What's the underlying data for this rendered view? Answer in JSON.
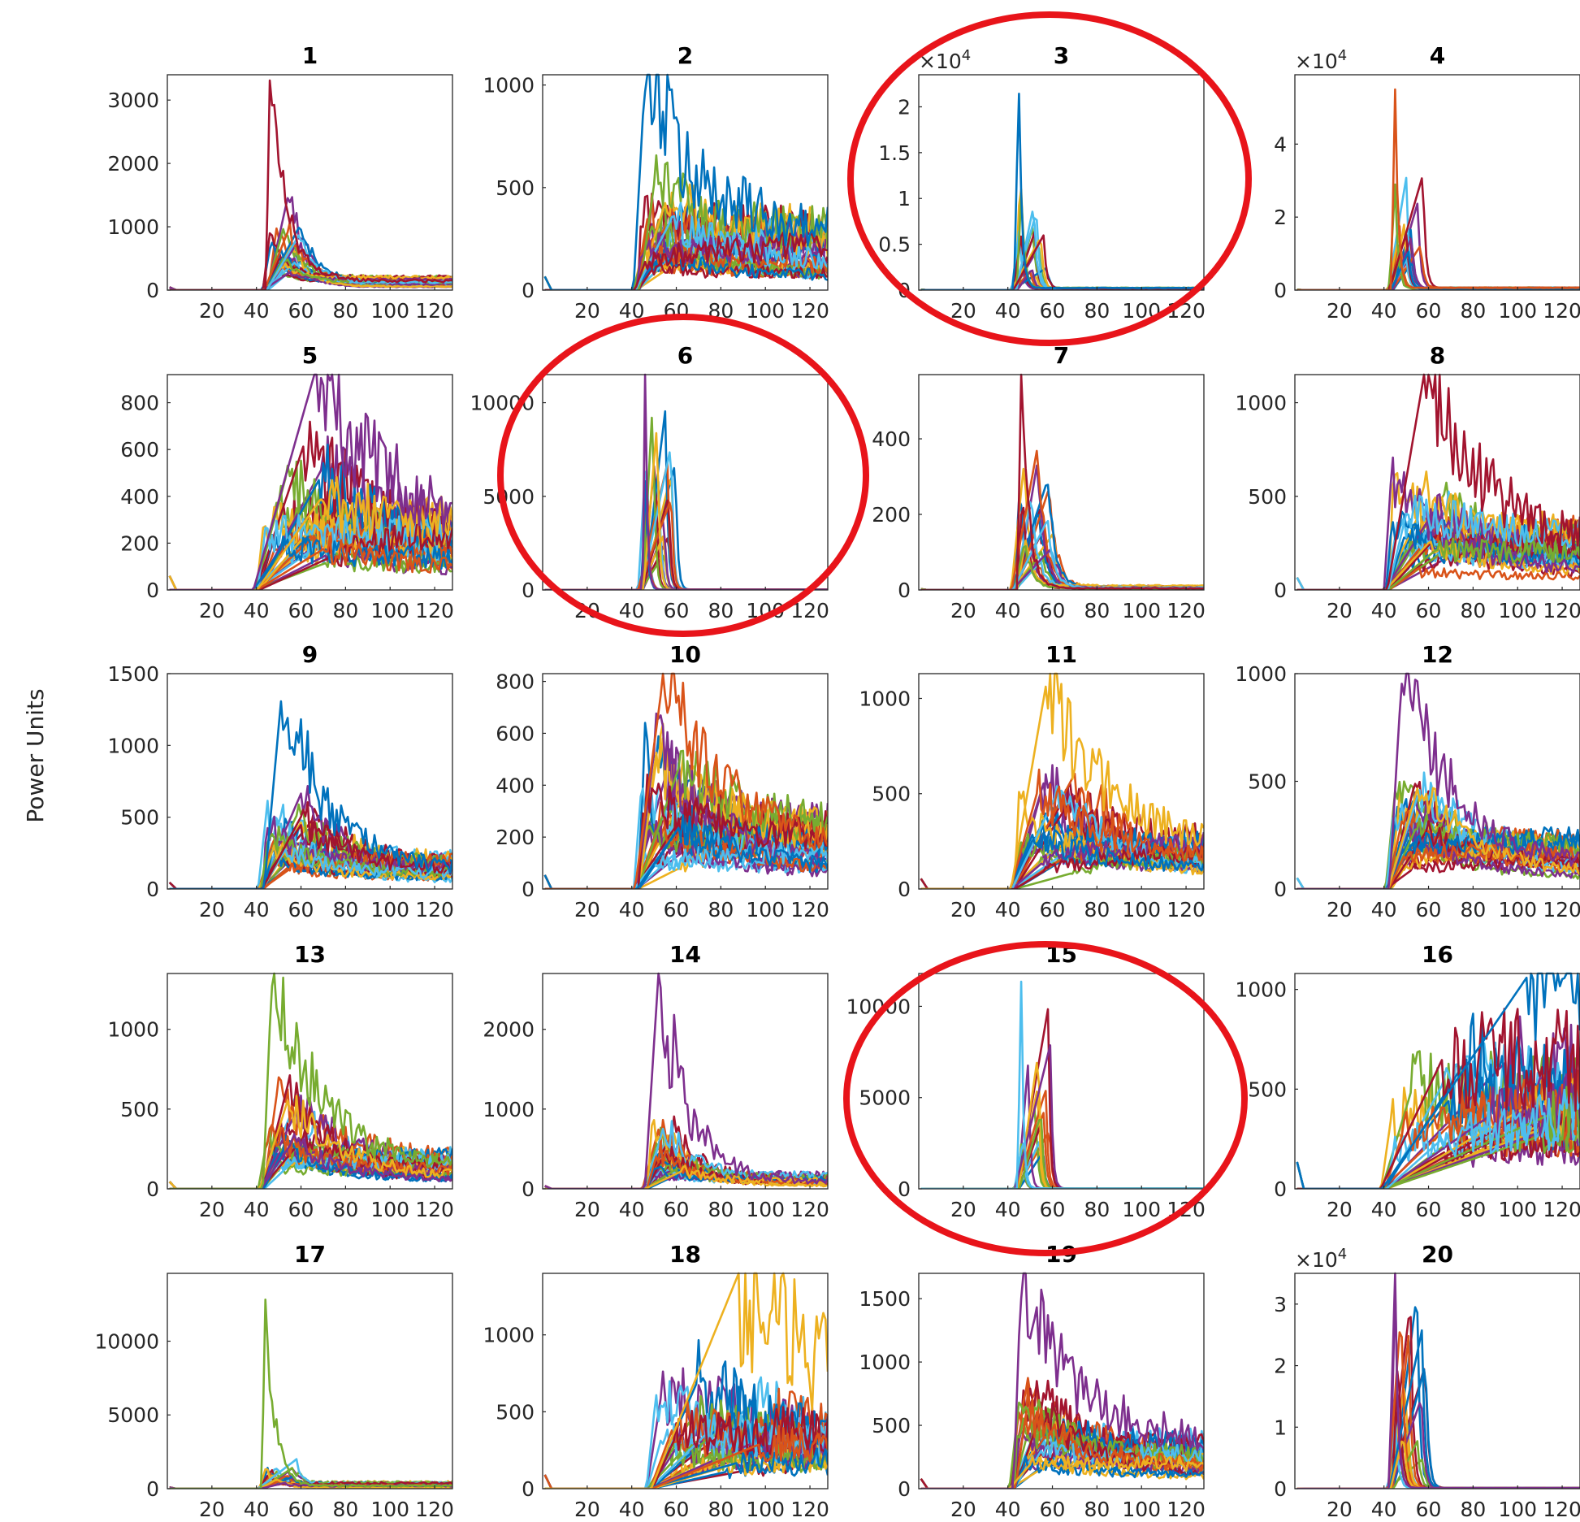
{
  "figure": {
    "ylabel": "Power Units",
    "series_colors": [
      "#0072BD",
      "#D95319",
      "#EDB120",
      "#7E2F8E",
      "#77AC30",
      "#4DBEEE",
      "#A2142F"
    ],
    "annotation_color": "#E8141A",
    "annotation_shape": "ellipse",
    "circled_panels": [
      "3",
      "6",
      "15"
    ]
  },
  "chart_data": [
    {
      "title": "1",
      "type": "line",
      "xlim": [
        0,
        128
      ],
      "ylim": [
        0,
        3400
      ],
      "xticks": [
        "20",
        "40",
        "60",
        "80",
        "100",
        "120"
      ],
      "yticks": [
        {
          "v": 0,
          "label": "0"
        },
        {
          "v": 1000,
          "label": "1000"
        },
        {
          "v": 2000,
          "label": "2000"
        },
        {
          "v": 3000,
          "label": "3000"
        }
      ],
      "exponent": "",
      "onset": 44,
      "peak_x": 46,
      "peak_y": 3400,
      "plateau": 1200,
      "tail": 150,
      "decay": 12,
      "noise": 0.15,
      "n_series": 28
    },
    {
      "title": "2",
      "type": "line",
      "xlim": [
        0,
        128
      ],
      "ylim": [
        0,
        1050
      ],
      "xticks": [
        "20",
        "40",
        "60",
        "80",
        "100",
        "120"
      ],
      "yticks": [
        {
          "v": 0,
          "label": "0"
        },
        {
          "v": 500,
          "label": "500"
        },
        {
          "v": 1000,
          "label": "1000"
        }
      ],
      "exponent": "",
      "onset": 42,
      "peak_x": 46,
      "peak_y": 1050,
      "plateau": 450,
      "tail": 220,
      "decay": 40,
      "noise": 0.35,
      "n_series": 28
    },
    {
      "title": "3",
      "type": "line",
      "xlim": [
        0,
        128
      ],
      "ylim": [
        0,
        2.35
      ],
      "xticks": [
        "20",
        "40",
        "60",
        "80",
        "100",
        "120"
      ],
      "yticks": [
        {
          "v": 0,
          "label": "0"
        },
        {
          "v": 0.5,
          "label": "0.5"
        },
        {
          "v": 1,
          "label": "1"
        },
        {
          "v": 1.5,
          "label": "1.5"
        },
        {
          "v": 2,
          "label": "2"
        }
      ],
      "exponent": "4",
      "onset": 43,
      "peak_x": 45,
      "peak_y": 2.35,
      "plateau": 0.9,
      "tail": 0.02,
      "decay": 2,
      "noise": 0.1,
      "n_series": 20
    },
    {
      "title": "4",
      "type": "line",
      "xlim": [
        0,
        128
      ],
      "ylim": [
        0,
        5.9
      ],
      "xticks": [
        "20",
        "40",
        "60",
        "80",
        "100",
        "120"
      ],
      "yticks": [
        {
          "v": 0,
          "label": "0"
        },
        {
          "v": 2,
          "label": "2"
        },
        {
          "v": 4,
          "label": "4"
        }
      ],
      "exponent": "4",
      "onset": 43,
      "peak_x": 45,
      "peak_y": 5.9,
      "plateau": 2.4,
      "tail": 0.05,
      "decay": 2,
      "noise": 0.1,
      "n_series": 20
    },
    {
      "title": "5",
      "type": "line",
      "xlim": [
        0,
        128
      ],
      "ylim": [
        0,
        920
      ],
      "xticks": [
        "20",
        "40",
        "60",
        "80",
        "100",
        "120"
      ],
      "yticks": [
        {
          "v": 0,
          "label": "0"
        },
        {
          "v": 200,
          "label": "200"
        },
        {
          "v": 400,
          "label": "400"
        },
        {
          "v": 600,
          "label": "600"
        },
        {
          "v": 800,
          "label": "800"
        }
      ],
      "exponent": "",
      "onset": 40,
      "peak_x": 66,
      "peak_y": 920,
      "plateau": 450,
      "tail": 200,
      "decay": 60,
      "noise": 0.35,
      "n_series": 28
    },
    {
      "title": "6",
      "type": "line",
      "xlim": [
        0,
        128
      ],
      "ylim": [
        0,
        11500
      ],
      "xticks": [
        "20",
        "40",
        "60",
        "80",
        "100",
        "120"
      ],
      "yticks": [
        {
          "v": 0,
          "label": "0"
        },
        {
          "v": 5000,
          "label": "5000"
        },
        {
          "v": 10000,
          "label": "10000"
        }
      ],
      "exponent": "",
      "onset": 44,
      "peak_x": 46,
      "peak_y": 11500,
      "plateau": 9000,
      "tail": 20,
      "decay": 1.5,
      "noise": 0.05,
      "n_series": 20
    },
    {
      "title": "7",
      "type": "line",
      "xlim": [
        0,
        128
      ],
      "ylim": [
        0,
        570
      ],
      "xticks": [
        "20",
        "40",
        "60",
        "80",
        "100",
        "120"
      ],
      "yticks": [
        {
          "v": 0,
          "label": "0"
        },
        {
          "v": 200,
          "label": "200"
        },
        {
          "v": 400,
          "label": "400"
        }
      ],
      "exponent": "",
      "onset": 43,
      "peak_x": 46,
      "peak_y": 570,
      "plateau": 300,
      "tail": 8,
      "decay": 5,
      "noise": 0.2,
      "n_series": 22
    },
    {
      "title": "8",
      "type": "line",
      "xlim": [
        0,
        128
      ],
      "ylim": [
        0,
        1150
      ],
      "xticks": [
        "20",
        "40",
        "60",
        "80",
        "100",
        "120"
      ],
      "yticks": [
        {
          "v": 0,
          "label": "0"
        },
        {
          "v": 500,
          "label": "500"
        },
        {
          "v": 1000,
          "label": "1000"
        }
      ],
      "exponent": "",
      "onset": 41,
      "peak_x": 58,
      "peak_y": 1150,
      "plateau": 500,
      "tail": 220,
      "decay": 45,
      "noise": 0.3,
      "n_series": 28
    },
    {
      "title": "9",
      "type": "line",
      "xlim": [
        0,
        128
      ],
      "ylim": [
        0,
        1500
      ],
      "xticks": [
        "20",
        "40",
        "60",
        "80",
        "100",
        "120"
      ],
      "yticks": [
        {
          "v": 0,
          "label": "0"
        },
        {
          "v": 500,
          "label": "500"
        },
        {
          "v": 1000,
          "label": "1000"
        },
        {
          "v": 1500,
          "label": "1500"
        }
      ],
      "exponent": "",
      "onset": 42,
      "peak_x": 52,
      "peak_y": 1480,
      "plateau": 500,
      "tail": 150,
      "decay": 30,
      "noise": 0.3,
      "n_series": 28
    },
    {
      "title": "10",
      "type": "line",
      "xlim": [
        0,
        128
      ],
      "ylim": [
        0,
        830
      ],
      "xticks": [
        "20",
        "40",
        "60",
        "80",
        "100",
        "120"
      ],
      "yticks": [
        {
          "v": 0,
          "label": "0"
        },
        {
          "v": 200,
          "label": "200"
        },
        {
          "v": 400,
          "label": "400"
        },
        {
          "v": 600,
          "label": "600"
        },
        {
          "v": 800,
          "label": "800"
        }
      ],
      "exponent": "",
      "onset": 42,
      "peak_x": 54,
      "peak_y": 810,
      "plateau": 420,
      "tail": 180,
      "decay": 45,
      "noise": 0.3,
      "n_series": 28
    },
    {
      "title": "11",
      "type": "line",
      "xlim": [
        0,
        128
      ],
      "ylim": [
        0,
        1130
      ],
      "xticks": [
        "20",
        "40",
        "60",
        "80",
        "100",
        "120"
      ],
      "yticks": [
        {
          "v": 0,
          "label": "0"
        },
        {
          "v": 500,
          "label": "500"
        },
        {
          "v": 1000,
          "label": "1000"
        }
      ],
      "exponent": "",
      "onset": 42,
      "peak_x": 58,
      "peak_y": 1130,
      "plateau": 450,
      "tail": 180,
      "decay": 45,
      "noise": 0.3,
      "n_series": 28
    },
    {
      "title": "12",
      "type": "line",
      "xlim": [
        0,
        128
      ],
      "ylim": [
        0,
        1000
      ],
      "xticks": [
        "20",
        "40",
        "60",
        "80",
        "100",
        "120"
      ],
      "yticks": [
        {
          "v": 0,
          "label": "0"
        },
        {
          "v": 500,
          "label": "500"
        },
        {
          "v": 1000,
          "label": "1000"
        }
      ],
      "exponent": "",
      "onset": 42,
      "peak_x": 48,
      "peak_y": 990,
      "plateau": 420,
      "tail": 170,
      "decay": 40,
      "noise": 0.25,
      "n_series": 28
    },
    {
      "title": "13",
      "type": "line",
      "xlim": [
        0,
        128
      ],
      "ylim": [
        0,
        1350
      ],
      "xticks": [
        "20",
        "40",
        "60",
        "80",
        "100",
        "120"
      ],
      "yticks": [
        {
          "v": 0,
          "label": "0"
        },
        {
          "v": 500,
          "label": "500"
        },
        {
          "v": 1000,
          "label": "1000"
        }
      ],
      "exponent": "",
      "onset": 42,
      "peak_x": 47,
      "peak_y": 1340,
      "plateau": 500,
      "tail": 150,
      "decay": 35,
      "noise": 0.3,
      "n_series": 28
    },
    {
      "title": "14",
      "type": "line",
      "xlim": [
        0,
        128
      ],
      "ylim": [
        0,
        2700
      ],
      "xticks": [
        "20",
        "40",
        "60",
        "80",
        "100",
        "120"
      ],
      "yticks": [
        {
          "v": 0,
          "label": "0"
        },
        {
          "v": 1000,
          "label": "1000"
        },
        {
          "v": 2000,
          "label": "2000"
        }
      ],
      "exponent": "",
      "onset": 46,
      "peak_x": 52,
      "peak_y": 2700,
      "plateau": 700,
      "tail": 120,
      "decay": 20,
      "noise": 0.35,
      "n_series": 26
    },
    {
      "title": "15",
      "type": "line",
      "xlim": [
        0,
        128
      ],
      "ylim": [
        0,
        11800
      ],
      "xticks": [
        "20",
        "40",
        "60",
        "80",
        "100",
        "120"
      ],
      "yticks": [
        {
          "v": 0,
          "label": "0"
        },
        {
          "v": 5000,
          "label": "5000"
        },
        {
          "v": 10000,
          "label": "10000"
        }
      ],
      "exponent": "",
      "onset": 44,
      "peak_x": 46,
      "peak_y": 11800,
      "plateau": 7000,
      "tail": 20,
      "decay": 1.5,
      "noise": 0.05,
      "n_series": 20
    },
    {
      "title": "16",
      "type": "line",
      "xlim": [
        0,
        128
      ],
      "ylim": [
        0,
        1080
      ],
      "xticks": [
        "20",
        "40",
        "60",
        "80",
        "100",
        "120"
      ],
      "yticks": [
        {
          "v": 0,
          "label": "0"
        },
        {
          "v": 500,
          "label": "500"
        },
        {
          "v": 1000,
          "label": "1000"
        }
      ],
      "exponent": "",
      "onset": 40,
      "peak_x": 105,
      "peak_y": 1075,
      "plateau": 500,
      "tail": 450,
      "decay": 200,
      "noise": 0.4,
      "n_series": 28
    },
    {
      "title": "17",
      "type": "line",
      "xlim": [
        0,
        128
      ],
      "ylim": [
        0,
        14600
      ],
      "xticks": [
        "20",
        "40",
        "60",
        "80",
        "100",
        "120"
      ],
      "yticks": [
        {
          "v": 0,
          "label": "0"
        },
        {
          "v": 5000,
          "label": "5000"
        },
        {
          "v": 10000,
          "label": "10000"
        }
      ],
      "exponent": "",
      "onset": 42,
      "peak_x": 44,
      "peak_y": 14600,
      "plateau": 1500,
      "tail": 300,
      "decay": 6,
      "noise": 0.25,
      "n_series": 24
    },
    {
      "title": "18",
      "type": "line",
      "xlim": [
        0,
        128
      ],
      "ylim": [
        0,
        1400
      ],
      "xticks": [
        "20",
        "40",
        "60",
        "80",
        "100",
        "120"
      ],
      "yticks": [
        {
          "v": 0,
          "label": "0"
        },
        {
          "v": 500,
          "label": "500"
        },
        {
          "v": 1000,
          "label": "1000"
        }
      ],
      "exponent": "",
      "onset": 48,
      "peak_x": 88,
      "peak_y": 1400,
      "plateau": 500,
      "tail": 300,
      "decay": 80,
      "noise": 0.45,
      "n_series": 28
    },
    {
      "title": "19",
      "type": "line",
      "xlim": [
        0,
        128
      ],
      "ylim": [
        0,
        1700
      ],
      "xticks": [
        "20",
        "40",
        "60",
        "80",
        "100",
        "120"
      ],
      "yticks": [
        {
          "v": 0,
          "label": "0"
        },
        {
          "v": 500,
          "label": "500"
        },
        {
          "v": 1000,
          "label": "1000"
        },
        {
          "v": 1500,
          "label": "1500"
        }
      ],
      "exponent": "",
      "onset": 42,
      "peak_x": 46,
      "peak_y": 1690,
      "plateau": 700,
      "tail": 260,
      "decay": 40,
      "noise": 0.3,
      "n_series": 28
    },
    {
      "title": "20",
      "type": "line",
      "xlim": [
        0,
        128
      ],
      "ylim": [
        0,
        3.5
      ],
      "xticks": [
        "20",
        "40",
        "60",
        "80",
        "100",
        "120"
      ],
      "yticks": [
        {
          "v": 0,
          "label": "0"
        },
        {
          "v": 1,
          "label": "1"
        },
        {
          "v": 2,
          "label": "2"
        },
        {
          "v": 3,
          "label": "3"
        }
      ],
      "exponent": "4",
      "onset": 43,
      "peak_x": 45,
      "peak_y": 3.5,
      "plateau": 2.5,
      "tail": 0.01,
      "decay": 2,
      "noise": 0.1,
      "n_series": 20
    }
  ]
}
